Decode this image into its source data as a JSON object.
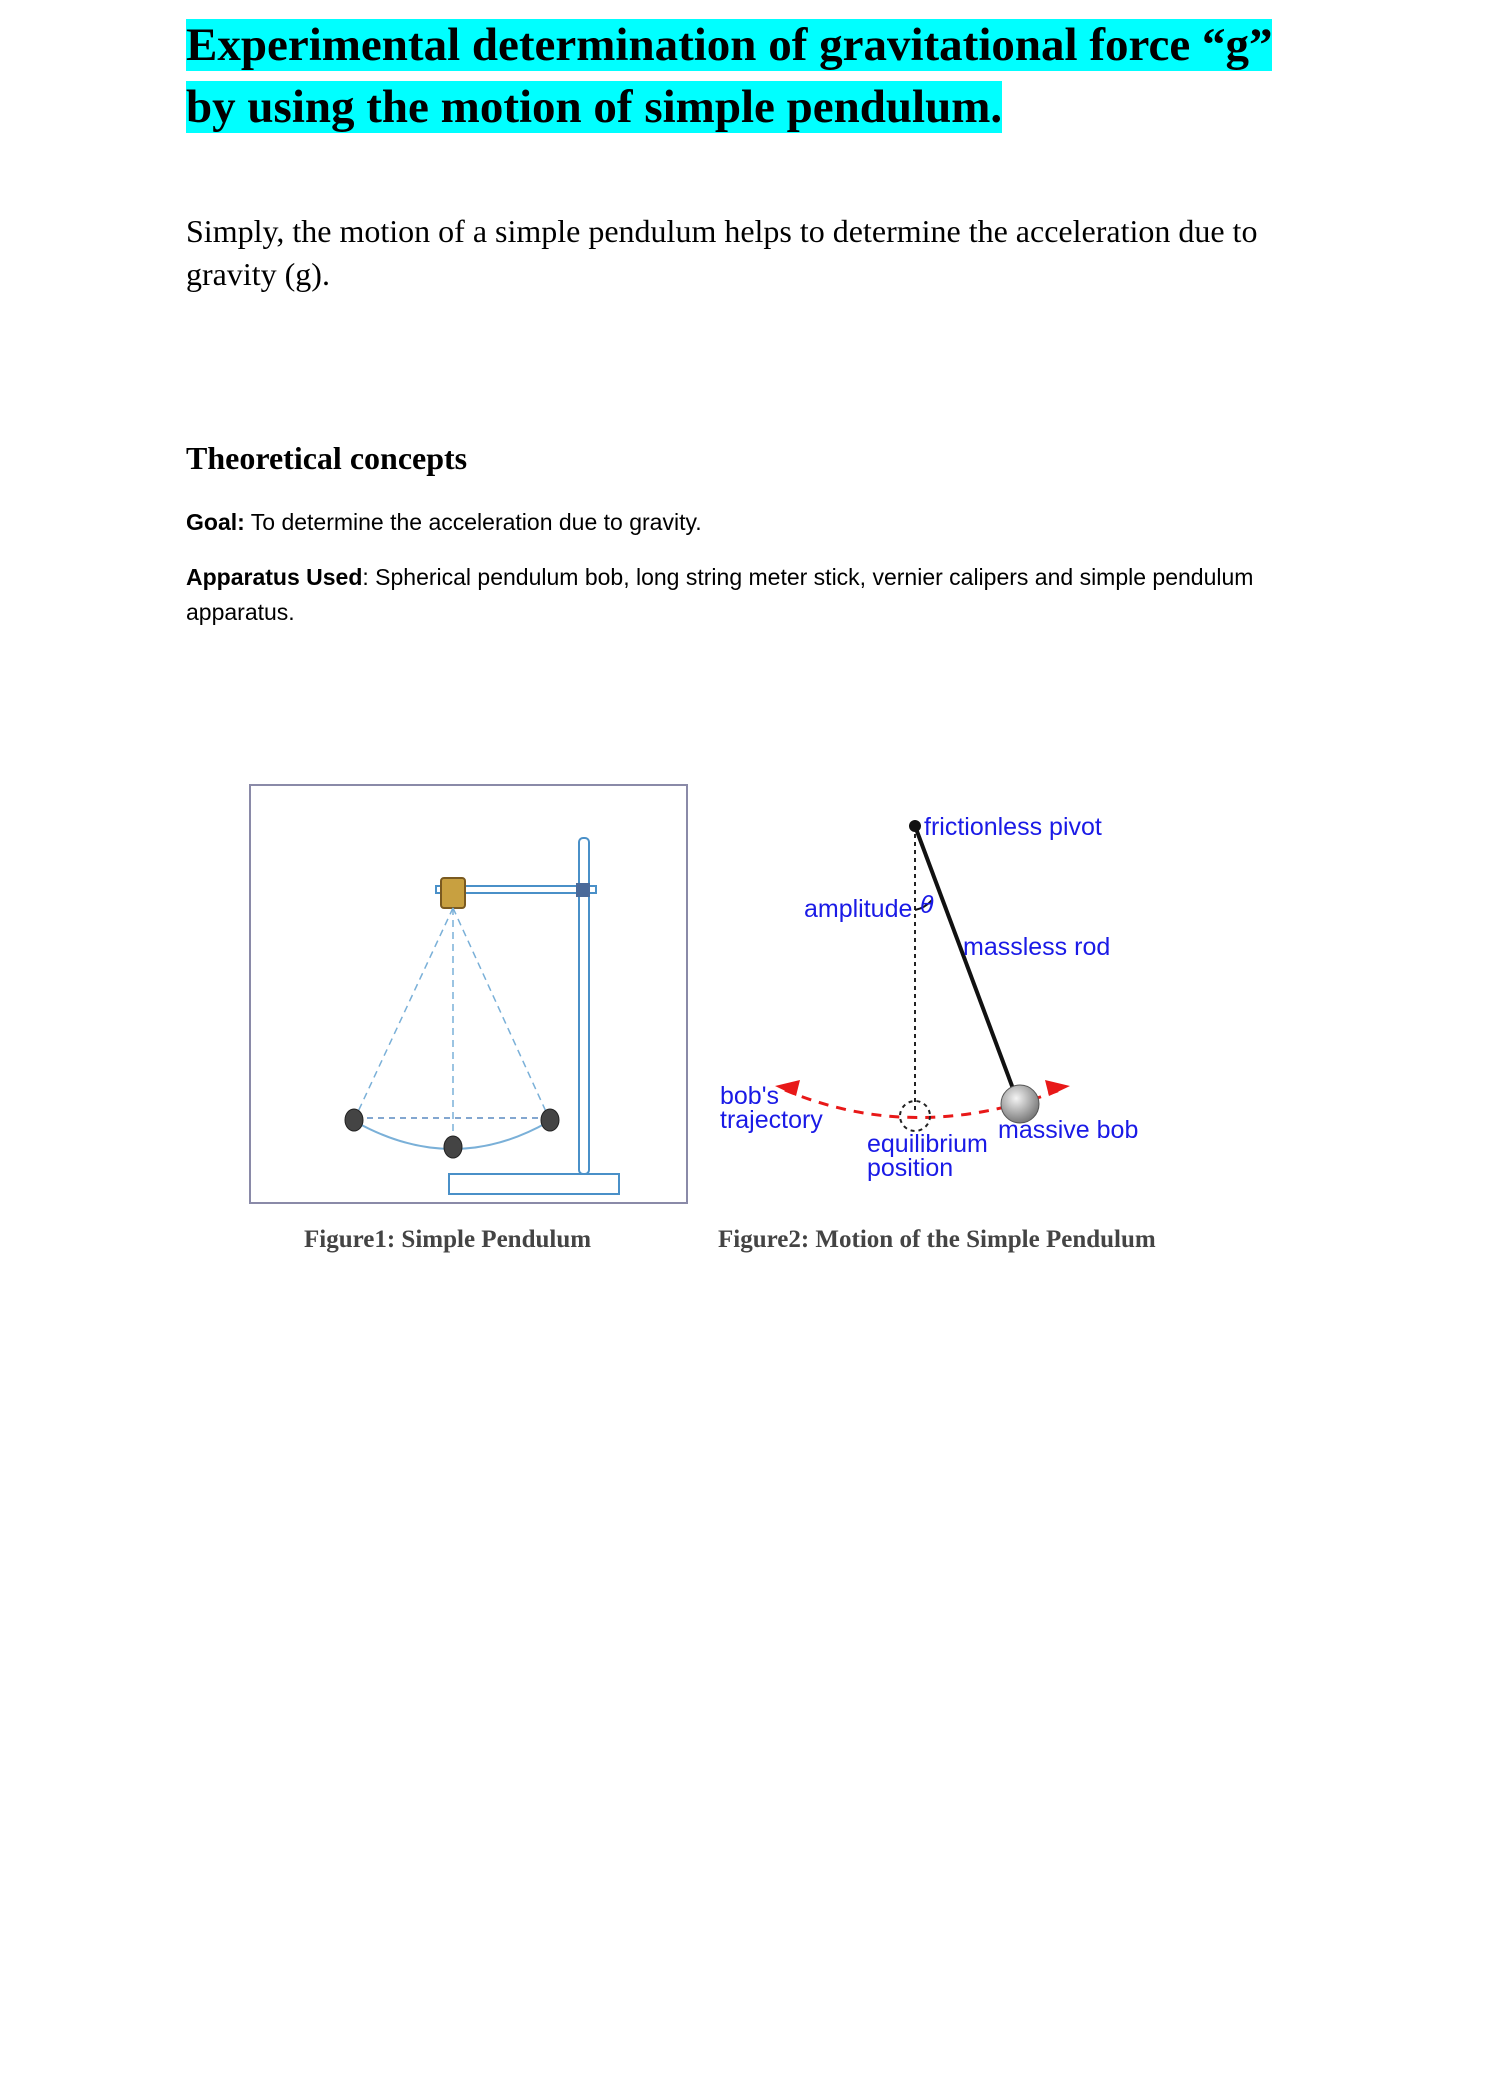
{
  "title": {
    "line1": "Experimental determination of gravitational force “g”",
    "line2": "by using the motion of simple pendulum."
  },
  "intro": "Simply, the motion of a simple pendulum helps to determine the acceleration due to gravity (g).",
  "section": {
    "heading": "Theoretical concepts",
    "goal_label": "Goal:",
    "goal_text": " To determine the acceleration due to gravity.",
    "apparatus_label": "Apparatus Used",
    "apparatus_text": ": Spherical pendulum bob, long string meter stick, vernier calipers and simple pendulum apparatus."
  },
  "figure1": {
    "caption": "Figure1: Simple Pendulum"
  },
  "figure2": {
    "caption": "Figure2: Motion of the Simple Pendulum",
    "labels": {
      "pivot": "frictionless pivot",
      "amplitude": "amplitude",
      "theta": "θ",
      "rod": "massless rod",
      "trajectory_line1": "bob's",
      "trajectory_line2": "trajectory",
      "equilibrium_line1": "equilibrium",
      "equilibrium_line2": "position",
      "bob": "massive bob"
    }
  },
  "colors": {
    "highlight": "#00ffff",
    "label_blue": "#1a1ae6",
    "trajectory_red": "#e81818",
    "apparatus_blue": "#4a90c8"
  }
}
